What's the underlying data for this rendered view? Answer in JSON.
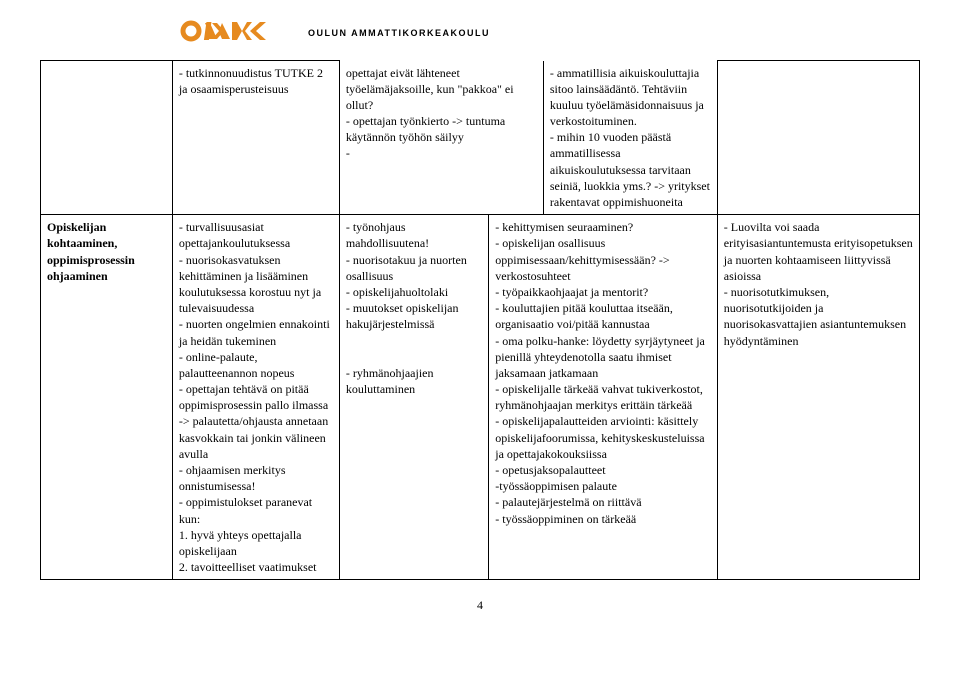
{
  "header": {
    "org_name": "OULUN AMMATTIKORKEAKOULU",
    "logo_color": "#e68a1f"
  },
  "page_number": "4",
  "row1": {
    "c1": "",
    "c2": "- tutkinnonuudistus TUTKE 2 ja osaamisperusteisuus",
    "c3": "opettajat eivät lähteneet työelämäjaksoille, kun \"pakkoa\" ei ollut?\n- opettajan työnkierto -> tuntuma käytännön työhön säilyy\n-",
    "c4": "- ammatillisia aikuiskouluttajia sitoo lainsäädäntö. Tehtäviin kuuluu työelämäsidonnaisuus ja verkostoituminen.\n- mihin 10 vuoden päästä ammatillisessa aikuiskoulutuksessa tarvitaan seiniä, luokkia yms.? -> yritykset rakentavat oppimishuoneita"
  },
  "row2": {
    "c1": "Opiskelijan kohtaaminen, oppimisprosessin ohjaaminen",
    "c2": "- turvallisuusasiat opettajankoulutuksessa\n- nuorisokasvatuksen kehittäminen ja lisääminen koulutuksessa korostuu nyt ja tulevaisuudessa\n- nuorten ongelmien ennakointi ja heidän tukeminen\n- online-palaute, palautteenannon nopeus\n- opettajan tehtävä on pitää oppimisprosessin pallo ilmassa -> palautetta/ohjausta annetaan kasvokkain tai jonkin välineen avulla\n- ohjaamisen merkitys onnistumisessa!\n- oppimistulokset paranevat kun:\n1. hyvä yhteys opettajalla opiskelijaan\n2. tavoitteelliset vaatimukset",
    "c3": "- työnohjaus mahdollisuutena!\n- nuorisotakuu ja nuorten osallisuus\n- opiskelijahuoltolaki\n- muutokset opiskelijan hakujärjestelmissä\n\n- ryhmänohjaajien kouluttaminen",
    "c4": "- kehittymisen seuraaminen?\n- opiskelijan osallisuus oppimisessaan/kehittymisessään? -> verkostosuhteet\n- työpaikkaohjaajat ja mentorit?\n- kouluttajien pitää kouluttaa itseään, organisaatio voi/pitää kannustaa\n- oma polku-hanke: löydetty syrjäytyneet ja pienillä yhteydenotolla saatu ihmiset jaksamaan jatkamaan\n- opiskelijalle tärkeää vahvat tukiverkostot, ryhmänohjaajan merkitys erittäin tärkeää\n- opiskelijapalautteiden arviointi: käsittely opiskelijafoorumissa, kehityskeskusteluissa ja opettajakokouksiissa\n- opetusjaksopalautteet\n-työssäoppimisen palaute\n- palautejärjestelmä on riittävä\n- työssäoppiminen on tärkeää",
    "c5": "- Luovilta voi saada erityisasiantuntemusta erityisopetuksen ja nuorten kohtaamiseen liittyvissä asioissa\n- nuorisotutkimuksen, nuorisotutkijoiden ja nuorisokasvattajien asiantuntemuksen hyödyntäminen"
  }
}
